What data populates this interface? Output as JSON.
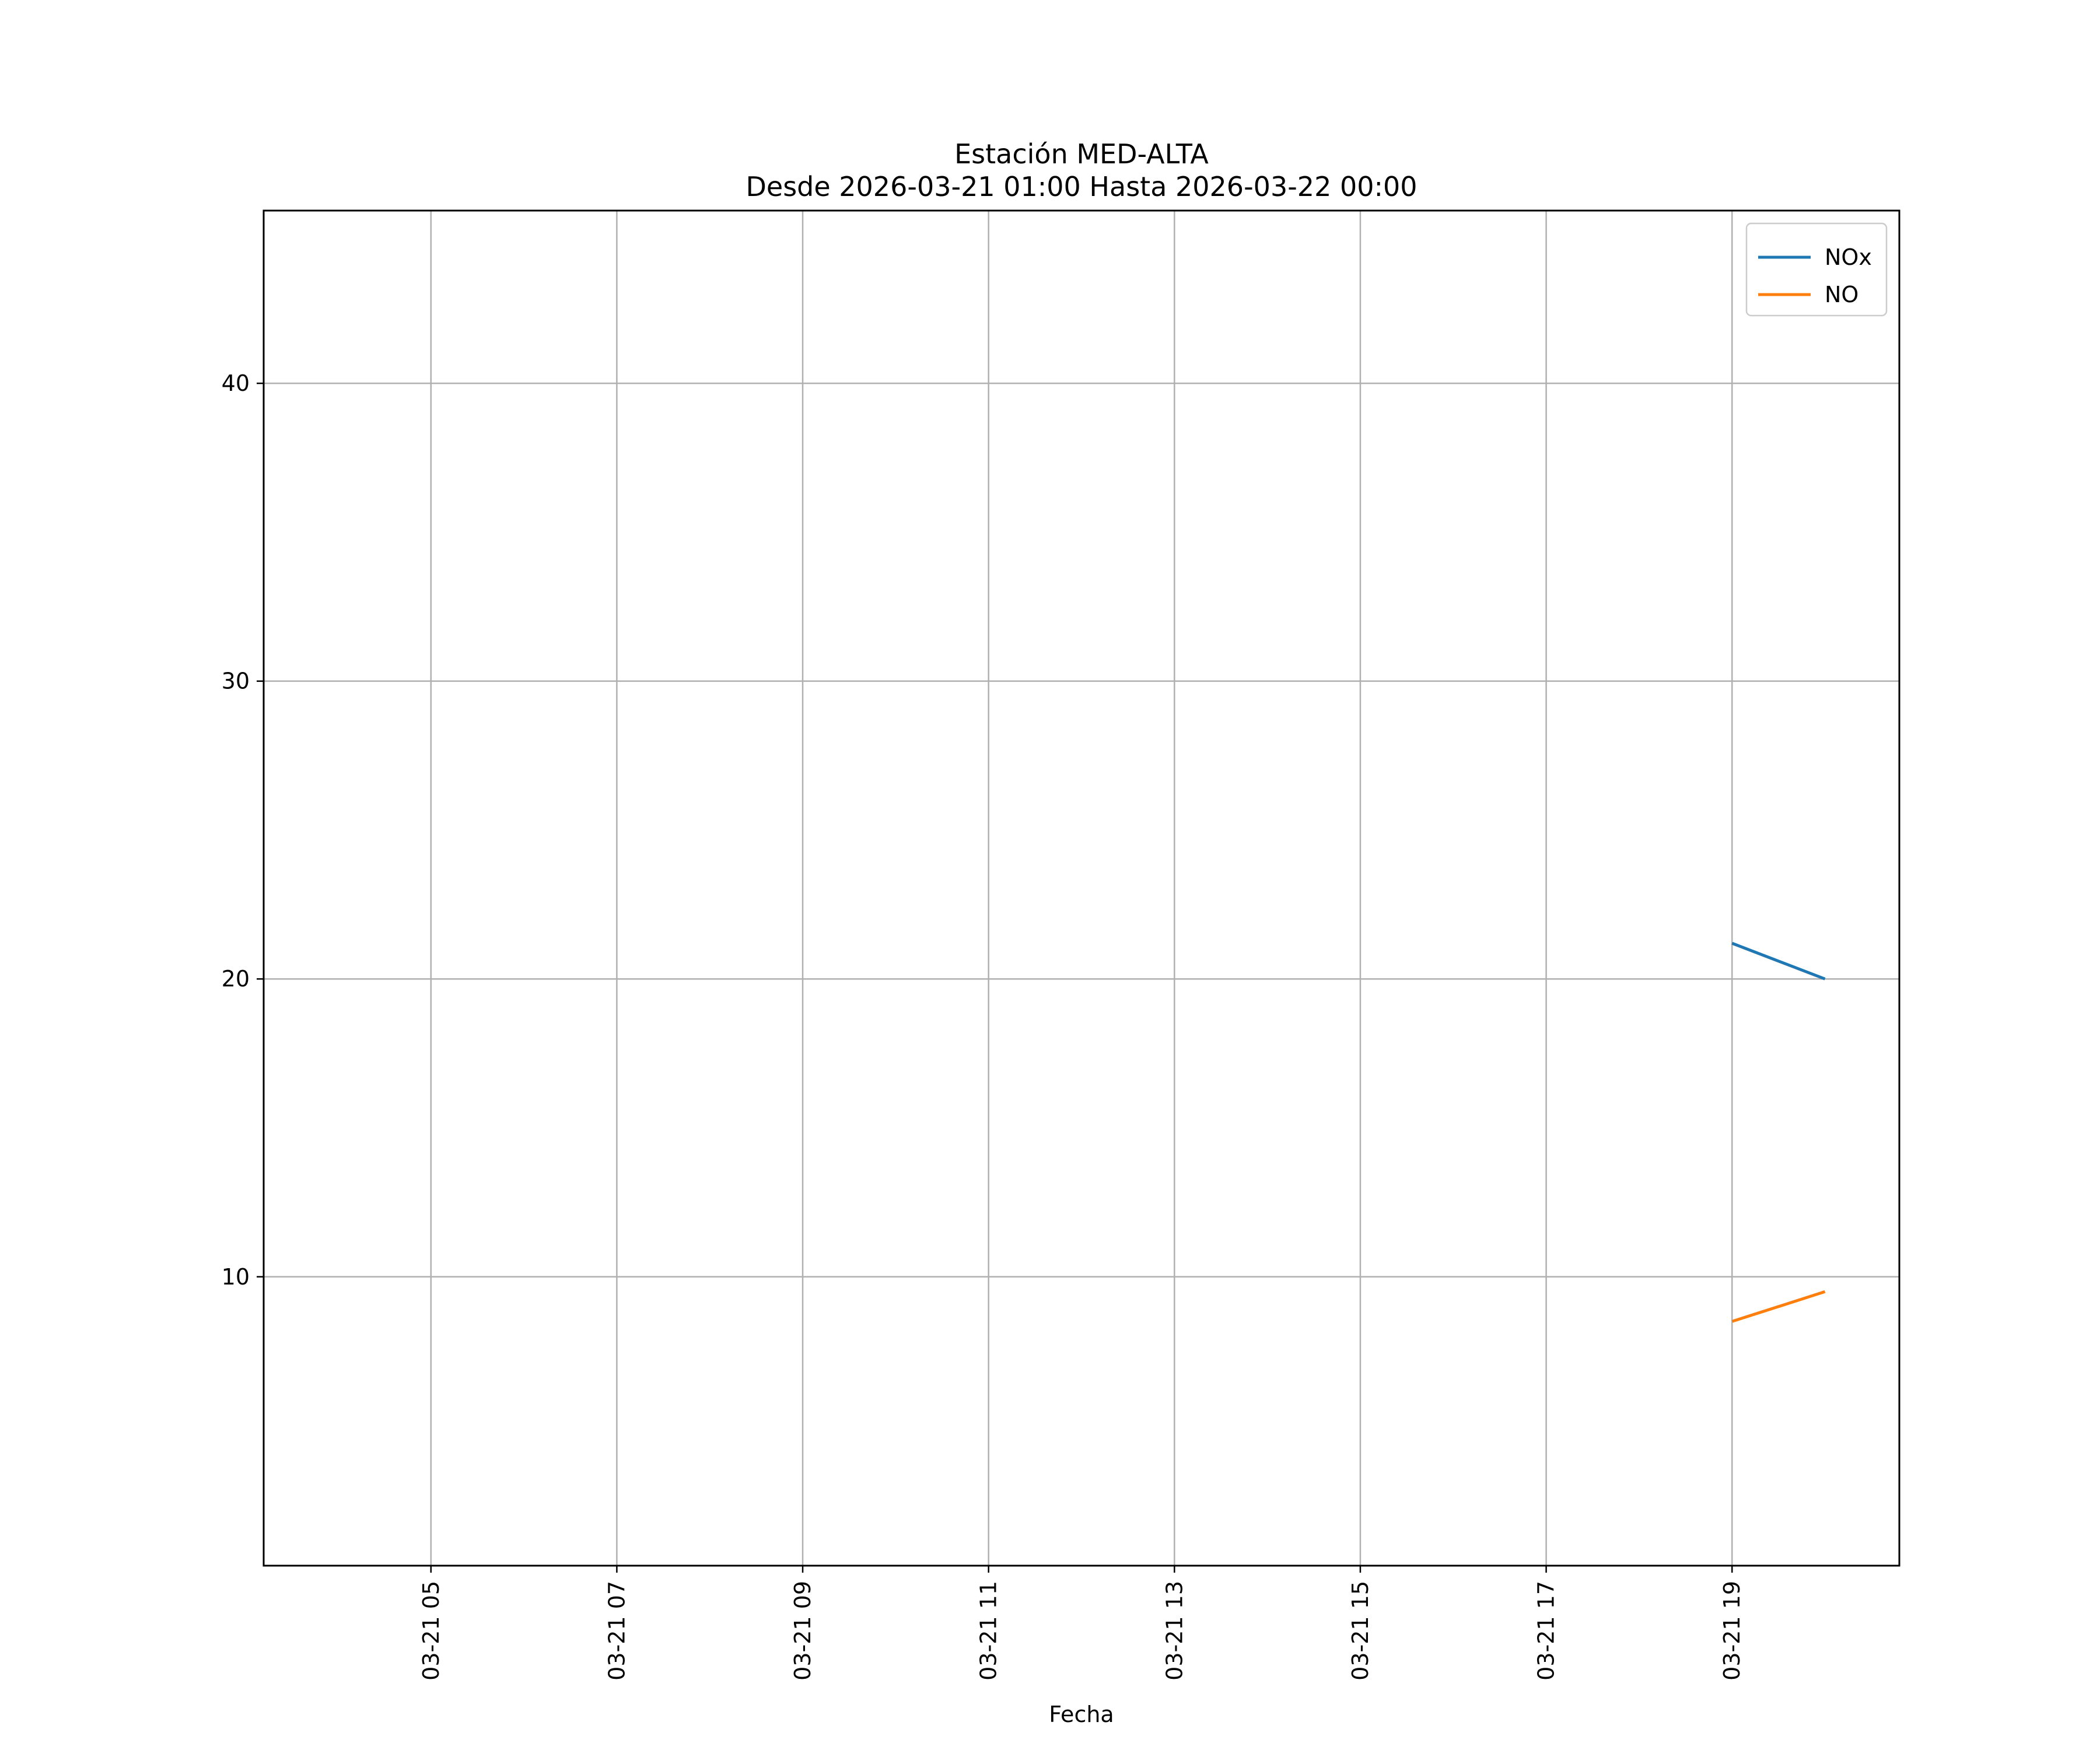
{
  "chart_data": {
    "type": "line",
    "title": "Estación MED-ALTA",
    "subtitle": "Desde 2026-03-21 01:00 Hasta 2026-03-22 00:00",
    "xlabel": "Fecha",
    "ylabel": "",
    "x_axis": {
      "type": "time",
      "range": [
        "2026-03-21 03:12",
        "2026-03-21 20:48"
      ],
      "ticks": [
        {
          "value": "2026-03-21 05:00",
          "label": "03-21 05"
        },
        {
          "value": "2026-03-21 07:00",
          "label": "03-21 07"
        },
        {
          "value": "2026-03-21 09:00",
          "label": "03-21 09"
        },
        {
          "value": "2026-03-21 11:00",
          "label": "03-21 11"
        },
        {
          "value": "2026-03-21 13:00",
          "label": "03-21 13"
        },
        {
          "value": "2026-03-21 15:00",
          "label": "03-21 15"
        },
        {
          "value": "2026-03-21 17:00",
          "label": "03-21 17"
        },
        {
          "value": "2026-03-21 19:00",
          "label": "03-21 19"
        }
      ]
    },
    "y_axis": {
      "range": [
        0.3,
        45.8
      ],
      "ticks": [
        {
          "value": 10,
          "label": "10"
        },
        {
          "value": 20,
          "label": "20"
        },
        {
          "value": 30,
          "label": "30"
        },
        {
          "value": 40,
          "label": "40"
        }
      ]
    },
    "grid": true,
    "legend": {
      "position": "top-right"
    },
    "series": [
      {
        "name": "NOx",
        "color": "#1f77b4",
        "points": [
          {
            "x": "2026-03-21 19:00",
            "y": 21.2
          },
          {
            "x": "2026-03-21 20:00",
            "y": 20.0
          }
        ]
      },
      {
        "name": "NO",
        "color": "#ff7f0e",
        "points": [
          {
            "x": "2026-03-21 19:00",
            "y": 8.5
          },
          {
            "x": "2026-03-21 20:00",
            "y": 9.5
          }
        ]
      }
    ]
  }
}
